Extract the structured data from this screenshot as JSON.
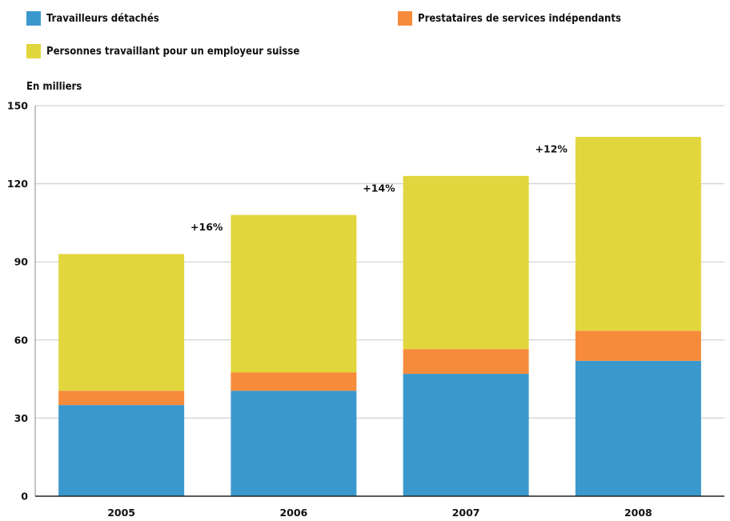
{
  "legend": {
    "items": [
      {
        "label": "Travailleurs détachés",
        "color": "#3b98cc"
      },
      {
        "label": "Prestataires de services indépendants",
        "color": "#f78b3c"
      },
      {
        "label": "Personnes travaillant pour un employeur suisse",
        "color": "#e1d63d"
      }
    ]
  },
  "unit_label": "En milliers",
  "chart_data": {
    "type": "bar",
    "stacked": true,
    "categories": [
      "2005",
      "2006",
      "2007",
      "2008"
    ],
    "series": [
      {
        "name": "Travailleurs détachés",
        "color": "#3b98cc",
        "values": [
          35,
          40.5,
          47,
          52
        ]
      },
      {
        "name": "Prestataires de services indépendants",
        "color": "#f78b3c",
        "values": [
          5.5,
          7,
          9.5,
          11.5
        ]
      },
      {
        "name": "Personnes travaillant pour un employeur suisse",
        "color": "#e1d63d",
        "values": [
          52.5,
          60.5,
          66.5,
          74.5
        ]
      }
    ],
    "ylabel": "En milliers",
    "ylim": [
      0,
      150
    ],
    "yticks": [
      0,
      30,
      60,
      90,
      120,
      150
    ],
    "grid": true,
    "legend_position": "top",
    "annotations": [
      {
        "text": "+16%",
        "between": [
          "2005",
          "2006"
        ],
        "y": 102
      },
      {
        "text": "+14%",
        "between": [
          "2006",
          "2007"
        ],
        "y": 117
      },
      {
        "text": "+12%",
        "between": [
          "2007",
          "2008"
        ],
        "y": 132
      }
    ]
  }
}
